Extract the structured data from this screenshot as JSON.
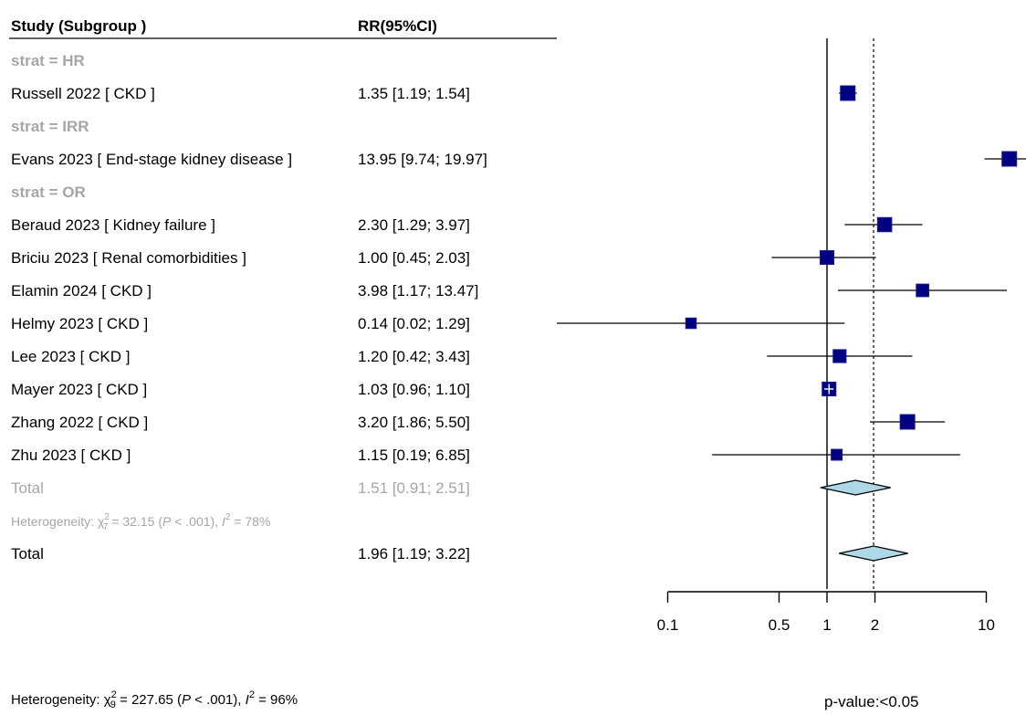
{
  "chart_data": {
    "type": "forest",
    "columns": {
      "study": "Study (Subgroup )",
      "effect": "RR(95%CI)"
    },
    "scale": "log",
    "xticks": [
      0.1,
      0.5,
      1,
      2,
      10
    ],
    "xtick_labels": [
      "0.1",
      "0.5",
      "1",
      "2",
      "10"
    ],
    "reference_line": 1,
    "summary_line": 1.96,
    "groups": [
      {
        "header": "strat = HR",
        "studies": [
          {
            "label": "Russell 2022  [ CKD ]",
            "ci_text": "1.35 [1.19;  1.54]",
            "rr": 1.35,
            "lo": 1.19,
            "hi": 1.54,
            "weight": 1.0
          }
        ]
      },
      {
        "header": "strat = IRR",
        "studies": [
          {
            "label": "Evans 2023  [ End-stage kidney disease ]",
            "ci_text": "13.95 [9.74; 19.97]",
            "rr": 13.95,
            "lo": 9.74,
            "hi": 19.97,
            "weight": 1.0
          }
        ]
      },
      {
        "header": "strat = OR",
        "studies": [
          {
            "label": "Beraud 2023  [ Kidney failure ]",
            "ci_text": "2.30 [1.29;  3.97]",
            "rr": 2.3,
            "lo": 1.29,
            "hi": 3.97,
            "weight": 0.95
          },
          {
            "label": "Briciu 2023  [ Renal comorbidities ]",
            "ci_text": "1.00 [0.45;  2.03]",
            "rr": 1.0,
            "lo": 0.45,
            "hi": 2.03,
            "weight": 0.9
          },
          {
            "label": "Elamin 2024  [ CKD ]",
            "ci_text": "3.98 [1.17; 13.47]",
            "rr": 3.98,
            "lo": 1.17,
            "hi": 13.47,
            "weight": 0.75
          },
          {
            "label": "Helmy 2023  [ CKD ]",
            "ci_text": "0.14 [0.02;  1.29]",
            "rr": 0.14,
            "lo": 0.02,
            "hi": 1.29,
            "weight": 0.5
          },
          {
            "label": "Lee 2023  [ CKD ]",
            "ci_text": "1.20 [0.42;  3.43]",
            "rr": 1.2,
            "lo": 0.42,
            "hi": 3.43,
            "weight": 0.8
          },
          {
            "label": "Mayer 2023  [ CKD ]",
            "ci_text": "1.03 [0.96;  1.10]",
            "rr": 1.03,
            "lo": 0.96,
            "hi": 1.1,
            "weight": 0.9
          },
          {
            "label": "Zhang 2022  [ CKD ]",
            "ci_text": "3.20 [1.86;  5.50]",
            "rr": 3.2,
            "lo": 1.86,
            "hi": 5.5,
            "weight": 1.0
          },
          {
            "label": "Zhu 2023  [ CKD ]",
            "ci_text": "1.15 [0.19;  6.85]",
            "rr": 1.15,
            "lo": 0.19,
            "hi": 6.85,
            "weight": 0.55
          }
        ],
        "total": {
          "label": "Total",
          "ci_text": "1.51 [0.91;  2.51]",
          "rr": 1.51,
          "lo": 0.91,
          "hi": 2.51
        },
        "heterogeneity": {
          "prefix": "Heterogeneity: ",
          "chi": "χ",
          "sup": "2",
          "df": "7",
          "rest": " = 32.15 (",
          "p": "P",
          "rest2": " < .001), ",
          "i": "I",
          "rest3": " = 78%"
        }
      }
    ],
    "overall": {
      "label": "Total",
      "ci_text": "1.96 [1.19;  3.22]",
      "rr": 1.96,
      "lo": 1.19,
      "hi": 3.22
    },
    "overall_heterogeneity": {
      "prefix": "Heterogeneity: ",
      "chi": "χ",
      "sup": "2",
      "df": "9",
      "rest": " = 227.65 (",
      "p": "P",
      "rest2": " < .001), ",
      "i": "I",
      "rest3": " = 96%"
    },
    "p_value_text": "p-value:<0.05",
    "colors": {
      "square": "#000080",
      "square_outline": "#1a1a8c",
      "diamond_fill": "#add8e6",
      "subgroup_grey": "#a6a6a6",
      "text": "#000000"
    }
  }
}
